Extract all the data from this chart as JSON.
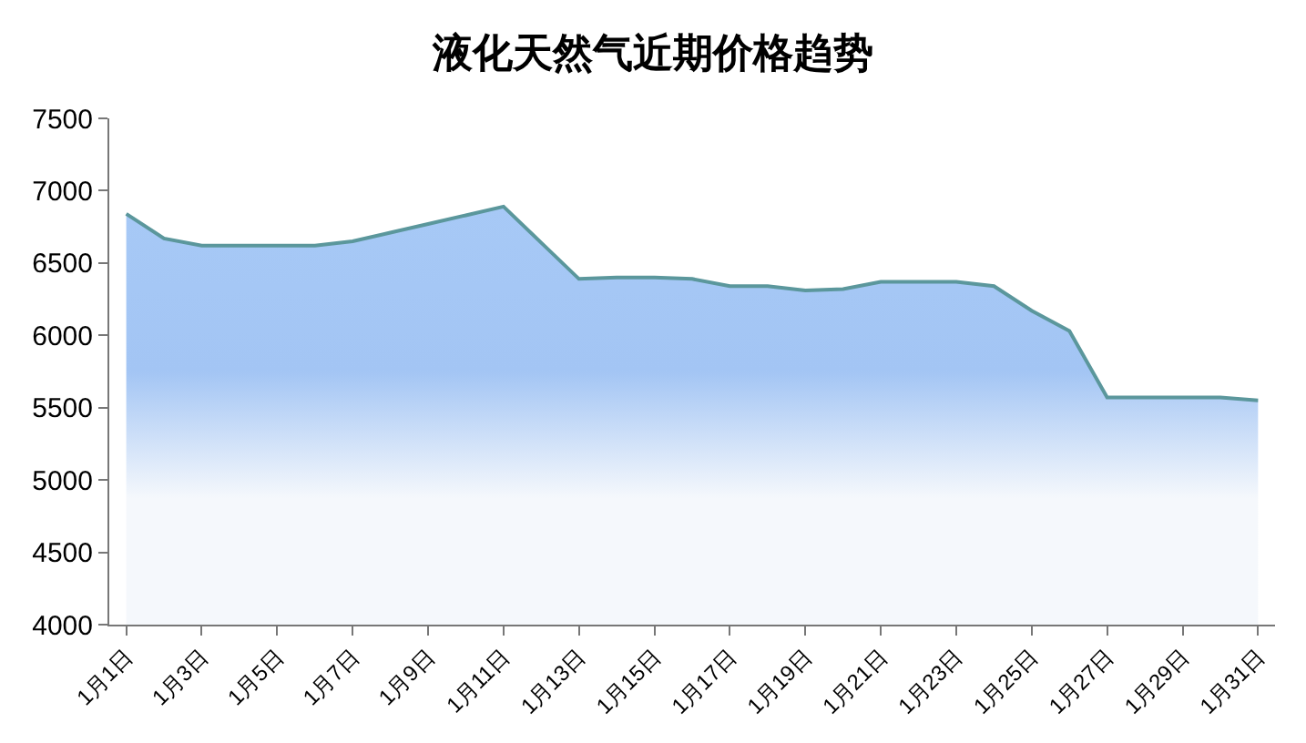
{
  "chart_data": {
    "type": "area",
    "title": "液化天然气近期价格趋势",
    "categories": [
      "1月1日",
      null,
      "1月3日",
      null,
      "1月5日",
      null,
      "1月7日",
      null,
      "1月9日",
      null,
      "1月11日",
      null,
      "1月13日",
      null,
      "1月15日",
      null,
      "1月17日",
      null,
      "1月19日",
      null,
      "1月21日",
      null,
      "1月23日",
      null,
      "1月25日",
      null,
      "1月27日",
      null,
      "1月29日",
      null,
      "1月31日"
    ],
    "series": [
      {
        "color": "#5b979c",
        "values": [
          6840,
          6670,
          6620,
          6620,
          6620,
          6620,
          6650,
          6710,
          6770,
          6830,
          6890,
          6640,
          6390,
          6400,
          6400,
          6390,
          6340,
          6340,
          6310,
          6320,
          6370,
          6370,
          6370,
          6340,
          6170,
          6030,
          5570,
          5570,
          5570,
          5570,
          5550
        ]
      }
    ],
    "ylim": [
      4000,
      7500
    ],
    "yticks": [
      4000,
      4500,
      5000,
      5500,
      6000,
      6500,
      7000,
      7500
    ],
    "grid": false,
    "marker": "none",
    "line_style": "solid"
  }
}
